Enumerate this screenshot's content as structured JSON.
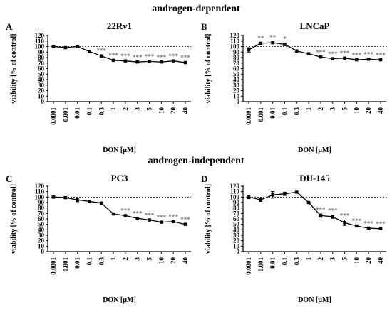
{
  "section_titles": [
    "androgen-dependent",
    "androgen-independent"
  ],
  "chart_data": [
    {
      "type": "line",
      "panel_letter": "A",
      "title": "22Rv1",
      "xlabel": "DON [µM]",
      "ylabel": "viability [% of control]",
      "ylim": [
        0,
        120
      ],
      "yticks": [
        0,
        10,
        20,
        30,
        40,
        50,
        60,
        70,
        80,
        90,
        100,
        110,
        120
      ],
      "categories": [
        "0.0001",
        "0.001",
        "0.01",
        "0.1",
        "0.3",
        "1",
        "2",
        "3",
        "5",
        "10",
        "20",
        "40"
      ],
      "reference_line": 100,
      "series": [
        {
          "values": [
            100,
            98,
            100,
            91,
            83,
            75,
            74,
            72,
            73,
            72,
            74,
            71
          ],
          "errors": [
            1,
            2,
            1.5,
            1.5,
            1.5,
            1,
            1,
            1,
            1,
            1,
            1,
            1
          ],
          "significance": [
            "",
            "",
            "",
            "",
            "***",
            "***",
            "***",
            "***",
            "***",
            "***",
            "***",
            "***"
          ]
        }
      ]
    },
    {
      "type": "line",
      "panel_letter": "B",
      "title": "LNCaP",
      "xlabel": "DON [µM]",
      "ylabel": "viability [% of control]",
      "ylim": [
        0,
        120
      ],
      "yticks": [
        0,
        10,
        20,
        30,
        40,
        50,
        60,
        70,
        80,
        90,
        100,
        110,
        120
      ],
      "categories": [
        "0.0001",
        "0.001",
        "0.01",
        "0.1",
        "0.3",
        "1",
        "2",
        "3",
        "5",
        "10",
        "20",
        "40"
      ],
      "reference_line": 100,
      "series": [
        {
          "values": [
            94,
            106,
            107,
            104,
            92,
            87,
            81,
            78,
            79,
            76,
            77,
            76
          ],
          "errors": [
            4,
            2,
            2,
            2.5,
            1.5,
            1.5,
            1,
            1,
            1,
            1,
            1,
            1
          ],
          "significance": [
            "",
            "**",
            "**",
            "*",
            "",
            "",
            "***",
            "***",
            "***",
            "***",
            "***",
            "***"
          ]
        }
      ]
    },
    {
      "type": "line",
      "panel_letter": "C",
      "title": "PC3",
      "xlabel": "DON [µM]",
      "ylabel": "viability [% of control]",
      "ylim": [
        0,
        120
      ],
      "yticks": [
        0,
        10,
        20,
        30,
        40,
        50,
        60,
        70,
        80,
        90,
        100,
        110,
        120
      ],
      "categories": [
        "0.0001",
        "0.001",
        "0.01",
        "0.1",
        "0.3",
        "1",
        "2",
        "3",
        "5",
        "10",
        "20",
        "40"
      ],
      "reference_line": 100,
      "series": [
        {
          "values": [
            100,
            99,
            95,
            92,
            89,
            69,
            66,
            61,
            58,
            54,
            55,
            50
          ],
          "errors": [
            2,
            2,
            3.5,
            2,
            1.5,
            1,
            1,
            1,
            1,
            1,
            1,
            1
          ],
          "significance": [
            "",
            "",
            "",
            "",
            "",
            "",
            "***",
            "***",
            "***",
            "***",
            "***",
            "***"
          ]
        }
      ]
    },
    {
      "type": "line",
      "panel_letter": "D",
      "title": "DU-145",
      "xlabel": "DON [µM]",
      "ylabel": "viability [% of control]",
      "ylim": [
        0,
        120
      ],
      "yticks": [
        0,
        10,
        20,
        30,
        40,
        50,
        60,
        70,
        80,
        90,
        100,
        110,
        120
      ],
      "categories": [
        "0.0001",
        "0.001",
        "0.01",
        "0.1",
        "0.3",
        "1",
        "2",
        "3",
        "5",
        "10",
        "20",
        "40"
      ],
      "reference_line": 100,
      "series": [
        {
          "values": [
            100,
            95,
            104,
            106,
            109,
            90,
            66,
            64,
            53,
            47,
            43,
            42
          ],
          "errors": [
            3,
            3,
            6,
            3,
            1.5,
            1,
            3,
            3,
            5,
            1.5,
            1,
            1
          ],
          "significance": [
            "",
            "",
            "",
            "",
            "",
            "",
            "***",
            "***",
            "***",
            "***",
            "***",
            "***"
          ]
        }
      ]
    }
  ]
}
